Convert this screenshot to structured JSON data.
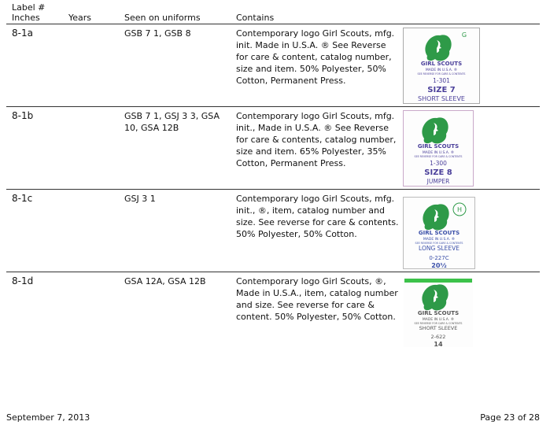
{
  "header": {
    "label": "Label #",
    "inches": "Inches",
    "years": "Years",
    "seen": "Seen on uniforms",
    "contains": "Contains"
  },
  "rows": [
    {
      "label": "8-1a",
      "seen": "GSB 7 1, GSB 8",
      "contains": "Contemporary logo Girl Scouts, mfg. init. Made in U.S.A. ® See Reverse for care & content, catalog number, size and item. 50% Polyester, 50% Cotton, Permanent Press.",
      "tag": {
        "corner": "G",
        "brand": "GIRL SCOUTS",
        "made": "MADE IN U.S.A. ®",
        "note": "SEE REVERSE FOR CARE & CONTENTS",
        "code": "1-301",
        "size": "SIZE  7",
        "style": "SHORT SLEEVE"
      }
    },
    {
      "label": "8-1b",
      "seen": "GSB 7 1, GSJ 3 3, GSA 10, GSA 12B",
      "contains": "Contemporary logo Girl Scouts, mfg. init., Made in U.S.A. ® See Reverse for care & contents, catalog number, size and item. 65% Polyester, 35% Cotton, Permanent Press.",
      "tag": {
        "brand": "GIRL SCOUTS",
        "made": "MADE IN U.S.A. ®",
        "note": "SEE REVERSE FOR CARE & CONTENTS",
        "code": "1-300",
        "size": "SIZE  8",
        "style": "JUMPER"
      }
    },
    {
      "label": "8-1c",
      "seen": "GSJ 3 1",
      "contains": "Contemporary logo Girl Scouts, mfg. init., ®, item, catalog number and size. See reverse for care & contents. 50% Polyester, 50% Cotton.",
      "tag": {
        "corner": "H",
        "brand": "GIRL SCOUTS",
        "made": "MADE IN U.S.A. ®",
        "note": "SEE REVERSE FOR CARE & CONTENTS",
        "style": "LONG SLEEVE",
        "code": "0-227C",
        "size": "20½"
      }
    },
    {
      "label": "8-1d",
      "seen": "GSA 12A, GSA 12B",
      "contains": "Contemporary logo Girl Scouts, ®, Made in U.S.A., item, catalog number and size. See reverse for care & content. 50% Polyester, 50% Cotton.",
      "tag": {
        "brand": "GIRL SCOUTS",
        "made": "MADE IN U.S.A. ®",
        "note": "SEE REVERSE FOR CARE & CONTENTS",
        "style": "SHORT SLEEVE",
        "code": "2-622",
        "size": "14"
      }
    }
  ],
  "footer": {
    "date": "September 7, 2013",
    "page": "Page 23 of 28"
  }
}
